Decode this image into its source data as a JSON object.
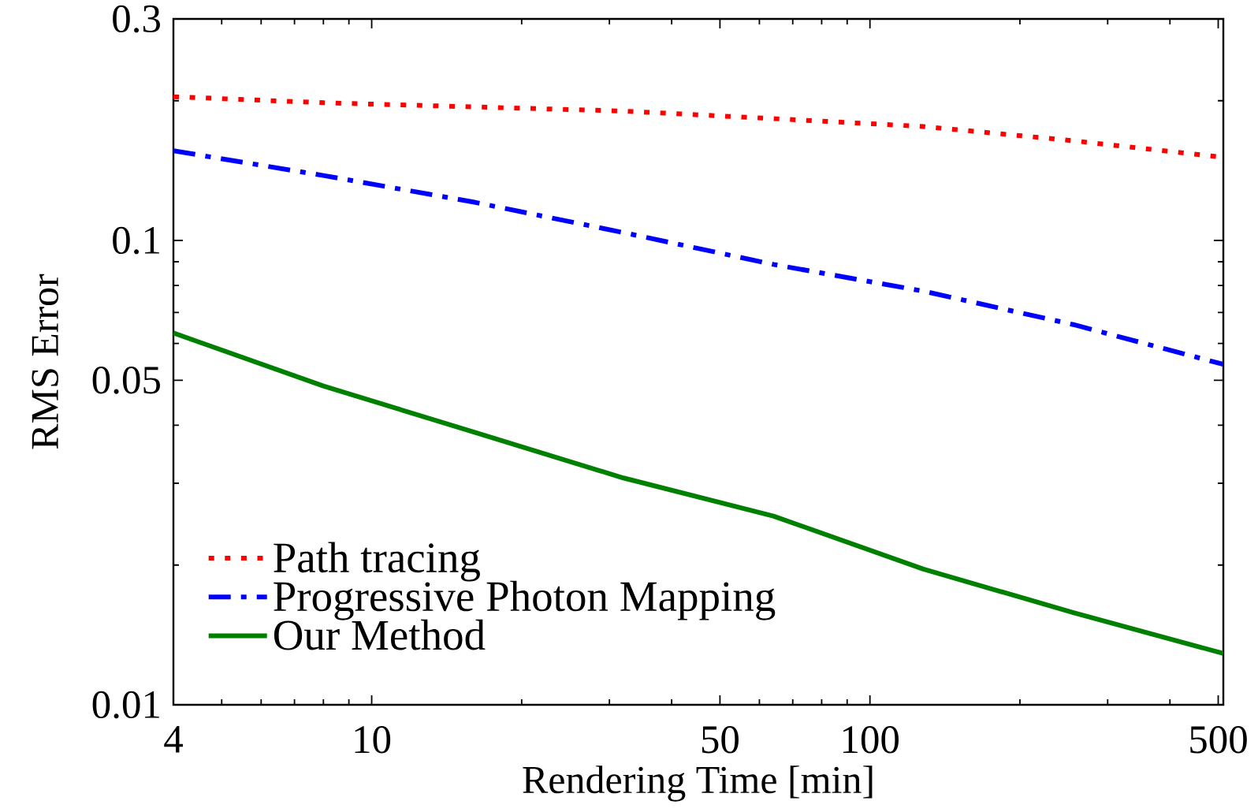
{
  "chart_data": {
    "type": "line",
    "xlabel": "Rendering Time [min]",
    "ylabel": "RMS Error",
    "x": [
      4,
      8,
      16,
      32,
      64,
      128,
      256,
      512
    ],
    "log": "xy",
    "xlim": [
      4,
      512
    ],
    "ylim": [
      0.01,
      0.3
    ],
    "xticks": [
      4,
      10,
      50,
      100,
      500
    ],
    "yticks": [
      0.01,
      0.05,
      0.1,
      0.3
    ],
    "legend": "bottom left",
    "series": [
      {
        "name": "Path tracing",
        "color": "#ff0000",
        "line_style": "dotted",
        "values": [
          0.204,
          0.198,
          0.194,
          0.19,
          0.183,
          0.176,
          0.164,
          0.151
        ]
      },
      {
        "name": "Progressive Photon Mapping",
        "color": "#0000ff",
        "line_style": "dashdot",
        "values": [
          0.156,
          0.138,
          0.121,
          0.104,
          0.0888,
          0.0778,
          0.0659,
          0.0541
        ]
      },
      {
        "name": "Our Method",
        "color": "#008000",
        "line_style": "solid",
        "values": [
          0.0632,
          0.0486,
          0.0387,
          0.0308,
          0.0255,
          0.0196,
          0.0158,
          0.0129
        ]
      }
    ]
  }
}
